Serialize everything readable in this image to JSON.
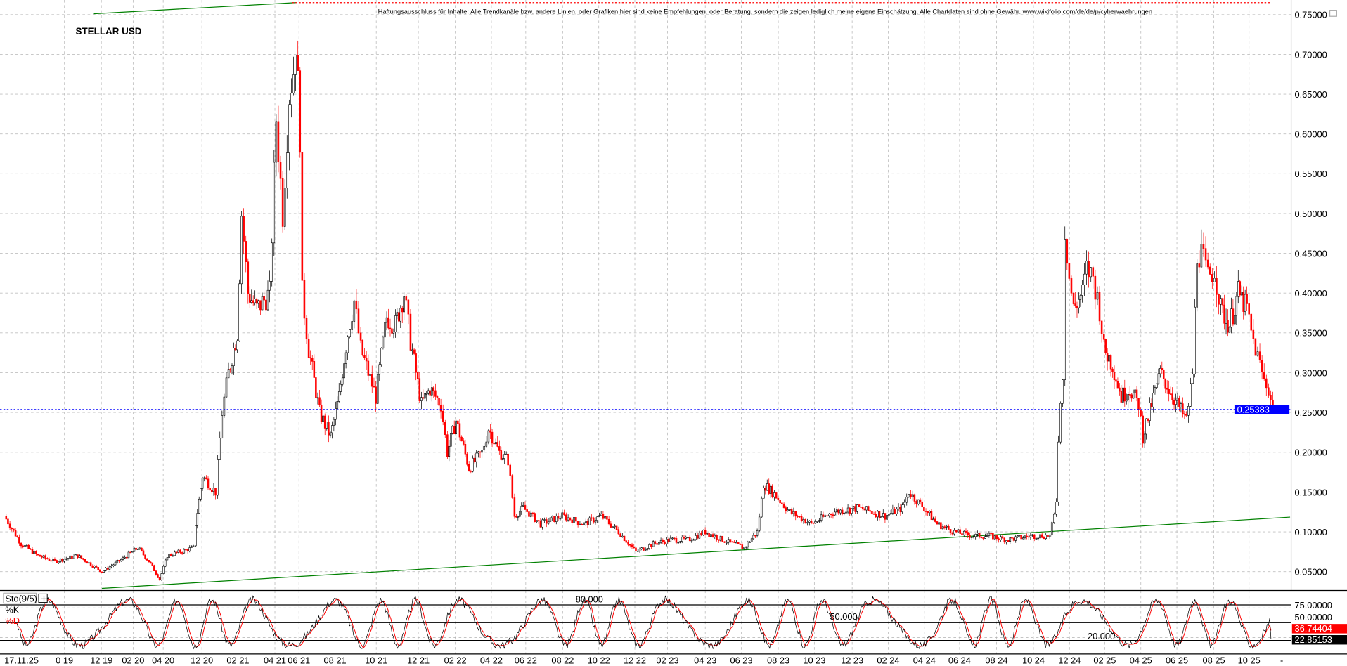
{
  "chart_title": "STELLAR USD",
  "disclaimer": "Haftungsausschluss für Inhalte: Alle Trendkanäle bzw. andere Linien, oder Grafiken hier sind keine Empfehlungen, oder Beratung, sondern die zeigen lediglich meine eigene Einschätzung. Alle Chartdaten sind ohne Gewähr. www.wikifolio.com/de/de/p/cyberwaehrungen",
  "colors": {
    "up": "#000000",
    "down": "#ff0000",
    "trendline": "#008000",
    "last_price": "#0000ff",
    "k_line": "#000000",
    "d_line": "#ff0000",
    "grid": "#c0c0c0"
  },
  "chart_data": [
    {
      "type": "candlestick",
      "title": "STELLAR USD",
      "ylim": [
        0.03,
        0.77
      ],
      "y_ticks": [
        "0.75000",
        "0.70000",
        "0.65000",
        "0.60000",
        "0.55000",
        "0.50000",
        "0.45000",
        "0.40000",
        "0.35000",
        "0.30000",
        "0.25000",
        "0.20000",
        "0.15000",
        "0.10000",
        "0.05000"
      ],
      "x_ticks": [
        "17.11.25",
        "0 19",
        "12 19",
        "02 20",
        "04 20",
        "12 20",
        "02 21",
        "04 21",
        "06 21",
        "08 21",
        "10 21",
        "12 21",
        "02 22",
        "04 22",
        "06 22",
        "08 22",
        "10 22",
        "12 22",
        "02 23",
        "04 23",
        "06 23",
        "08 23",
        "10 23",
        "12 23",
        "02 24",
        "04 24",
        "06 24",
        "08 24",
        "10 24",
        "12 24",
        "02 25",
        "04 25",
        "06 25",
        "08 25",
        "10 25",
        "-"
      ],
      "grid": true,
      "last_price": 0.25383,
      "last_price_label": "0.25383",
      "close_series": [
        [
          2019.5,
          0.12
        ],
        [
          2019.57,
          0.085
        ],
        [
          2019.64,
          0.07
        ],
        [
          2019.71,
          0.063
        ],
        [
          2019.81,
          0.07
        ],
        [
          2019.92,
          0.05
        ],
        [
          2020.02,
          0.065
        ],
        [
          2020.11,
          0.08
        ],
        [
          2020.18,
          0.06
        ],
        [
          2020.23,
          0.04
        ],
        [
          2020.32,
          0.07
        ],
        [
          2020.77,
          0.08
        ],
        [
          2020.81,
          0.11
        ],
        [
          2020.92,
          0.17
        ],
        [
          2020.98,
          0.15
        ],
        [
          2021.01,
          0.25
        ],
        [
          2021.04,
          0.3
        ],
        [
          2021.08,
          0.35
        ],
        [
          2021.1,
          0.5
        ],
        [
          2021.13,
          0.4
        ],
        [
          2021.17,
          0.38
        ],
        [
          2021.23,
          0.4
        ],
        [
          2021.26,
          0.62
        ],
        [
          2021.29,
          0.5
        ],
        [
          2021.32,
          0.65
        ],
        [
          2021.34,
          0.68
        ],
        [
          2021.35,
          0.72
        ],
        [
          2021.37,
          0.6
        ],
        [
          2021.38,
          0.4
        ],
        [
          2021.41,
          0.33
        ],
        [
          2021.46,
          0.25
        ],
        [
          2021.51,
          0.22
        ],
        [
          2021.55,
          0.27
        ],
        [
          2021.59,
          0.35
        ],
        [
          2021.62,
          0.39
        ],
        [
          2021.65,
          0.33
        ],
        [
          2021.72,
          0.27
        ],
        [
          2021.77,
          0.37
        ],
        [
          2021.81,
          0.36
        ],
        [
          2021.85,
          0.4
        ],
        [
          2021.88,
          0.34
        ],
        [
          2021.93,
          0.26
        ],
        [
          2021.97,
          0.28
        ],
        [
          2022.02,
          0.26
        ],
        [
          2022.05,
          0.2
        ],
        [
          2022.09,
          0.24
        ],
        [
          2022.15,
          0.18
        ],
        [
          2022.21,
          0.2
        ],
        [
          2022.24,
          0.23
        ],
        [
          2022.29,
          0.2
        ],
        [
          2022.33,
          0.19
        ],
        [
          2022.36,
          0.12
        ],
        [
          2022.4,
          0.13
        ],
        [
          2022.48,
          0.11
        ],
        [
          2022.58,
          0.12
        ],
        [
          2022.68,
          0.11
        ],
        [
          2022.76,
          0.12
        ],
        [
          2022.84,
          0.1
        ],
        [
          2022.92,
          0.075
        ],
        [
          2023.0,
          0.085
        ],
        [
          2023.08,
          0.09
        ],
        [
          2023.16,
          0.09
        ],
        [
          2023.24,
          0.1
        ],
        [
          2023.32,
          0.09
        ],
        [
          2023.42,
          0.08
        ],
        [
          2023.48,
          0.1
        ],
        [
          2023.51,
          0.16
        ],
        [
          2023.55,
          0.15
        ],
        [
          2023.63,
          0.125
        ],
        [
          2023.73,
          0.11
        ],
        [
          2023.83,
          0.125
        ],
        [
          2023.95,
          0.13
        ],
        [
          2024.07,
          0.12
        ],
        [
          2024.15,
          0.13
        ],
        [
          2024.18,
          0.15
        ],
        [
          2024.25,
          0.13
        ],
        [
          2024.31,
          0.11
        ],
        [
          2024.39,
          0.1
        ],
        [
          2024.47,
          0.095
        ],
        [
          2024.55,
          0.095
        ],
        [
          2024.63,
          0.09
        ],
        [
          2024.75,
          0.095
        ],
        [
          2024.83,
          0.095
        ],
        [
          2024.85,
          0.12
        ],
        [
          2024.86,
          0.14
        ],
        [
          2024.87,
          0.22
        ],
        [
          2024.89,
          0.3
        ],
        [
          2024.9,
          0.48
        ],
        [
          2024.92,
          0.42
        ],
        [
          2024.94,
          0.38
        ],
        [
          2024.98,
          0.4
        ],
        [
          2025.0,
          0.43
        ],
        [
          2025.03,
          0.42
        ],
        [
          2025.06,
          0.38
        ],
        [
          2025.08,
          0.33
        ],
        [
          2025.12,
          0.31
        ],
        [
          2025.16,
          0.27
        ],
        [
          2025.2,
          0.28
        ],
        [
          2025.24,
          0.26
        ],
        [
          2025.26,
          0.22
        ],
        [
          2025.3,
          0.26
        ],
        [
          2025.34,
          0.3
        ],
        [
          2025.38,
          0.28
        ],
        [
          2025.42,
          0.26
        ],
        [
          2025.46,
          0.24
        ],
        [
          2025.49,
          0.3
        ],
        [
          2025.51,
          0.45
        ],
        [
          2025.53,
          0.45
        ],
        [
          2025.56,
          0.42
        ],
        [
          2025.59,
          0.43
        ],
        [
          2025.62,
          0.38
        ],
        [
          2025.66,
          0.36
        ],
        [
          2025.7,
          0.4
        ],
        [
          2025.74,
          0.38
        ],
        [
          2025.76,
          0.35
        ],
        [
          2025.79,
          0.32
        ],
        [
          2025.82,
          0.29
        ],
        [
          2025.84,
          0.28
        ],
        [
          2025.86,
          0.254
        ]
      ],
      "trendlines": [
        {
          "from": [
            2019.92,
            0.029
          ],
          "to": [
            2025.94,
            0.1185
          ],
          "color": "#008000"
        },
        {
          "from": [
            2019.88,
            0.751
          ],
          "to": [
            2021.35,
            0.765
          ],
          "color": "#008000"
        }
      ],
      "resistance_level": 0.765
    },
    {
      "type": "line",
      "title": "Sto(9/5)",
      "series": [
        {
          "name": "%K",
          "color": "#000000",
          "last": 22.85153,
          "last_label": "22.85153"
        },
        {
          "name": "%D",
          "color": "#ff0000",
          "last": 36.74404,
          "last_label": "36.74404"
        }
      ],
      "ylim": [
        0,
        100
      ],
      "levels": [
        80,
        50,
        20
      ],
      "level_labels": [
        "80.000",
        "50.000",
        "20.000"
      ],
      "y_ticks": [
        "75.00000",
        "50.00000"
      ]
    }
  ]
}
